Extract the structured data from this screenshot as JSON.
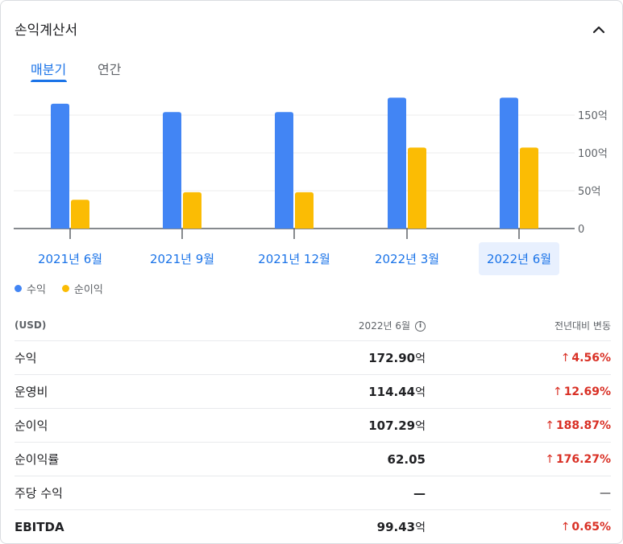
{
  "header": {
    "title": "손익계산서"
  },
  "tabs": [
    {
      "label": "매분기",
      "active": true
    },
    {
      "label": "연간",
      "active": false
    }
  ],
  "chart_data": {
    "type": "bar",
    "categories": [
      "2021년 6월",
      "2021년 9월",
      "2021년 12월",
      "2022년 3월",
      "2022년 6월"
    ],
    "series": [
      {
        "name": "수익",
        "color": "#4285f4",
        "values": [
          165,
          154,
          154,
          173,
          173
        ]
      },
      {
        "name": "순이익",
        "color": "#fbbc04",
        "values": [
          38,
          48,
          48,
          107,
          107
        ]
      }
    ],
    "y_ticks": [
      "150억",
      "100억",
      "50억",
      "0"
    ],
    "y_tick_values": [
      150,
      100,
      50,
      0
    ],
    "ylim": [
      0,
      180
    ],
    "y_axis_side": "right",
    "grid": true,
    "selected_category": "2022년 6월",
    "legend_position": "bottom-left"
  },
  "table": {
    "headers": {
      "label": "(USD)",
      "period": "2022년 6월",
      "change": "전년대비 변동"
    },
    "rows": [
      {
        "label": "수익",
        "value": "172.90",
        "unit": "억",
        "change": "4.56%",
        "direction": "up"
      },
      {
        "label": "운영비",
        "value": "114.44",
        "unit": "억",
        "change": "12.69%",
        "direction": "up"
      },
      {
        "label": "순이익",
        "value": "107.29",
        "unit": "억",
        "change": "188.87%",
        "direction": "up"
      },
      {
        "label": "순이익률",
        "value": "62.05",
        "unit": "",
        "change": "176.27%",
        "direction": "up"
      },
      {
        "label": "주당 수익",
        "value": "—",
        "unit": "",
        "change": "—",
        "direction": "none"
      },
      {
        "label": "EBITDA",
        "value": "99.43",
        "unit": "억",
        "change": "0.65%",
        "direction": "up"
      }
    ]
  },
  "icons": {
    "collapse": "chevron-up-icon",
    "info": "info-icon",
    "up": "arrow-up-icon"
  }
}
